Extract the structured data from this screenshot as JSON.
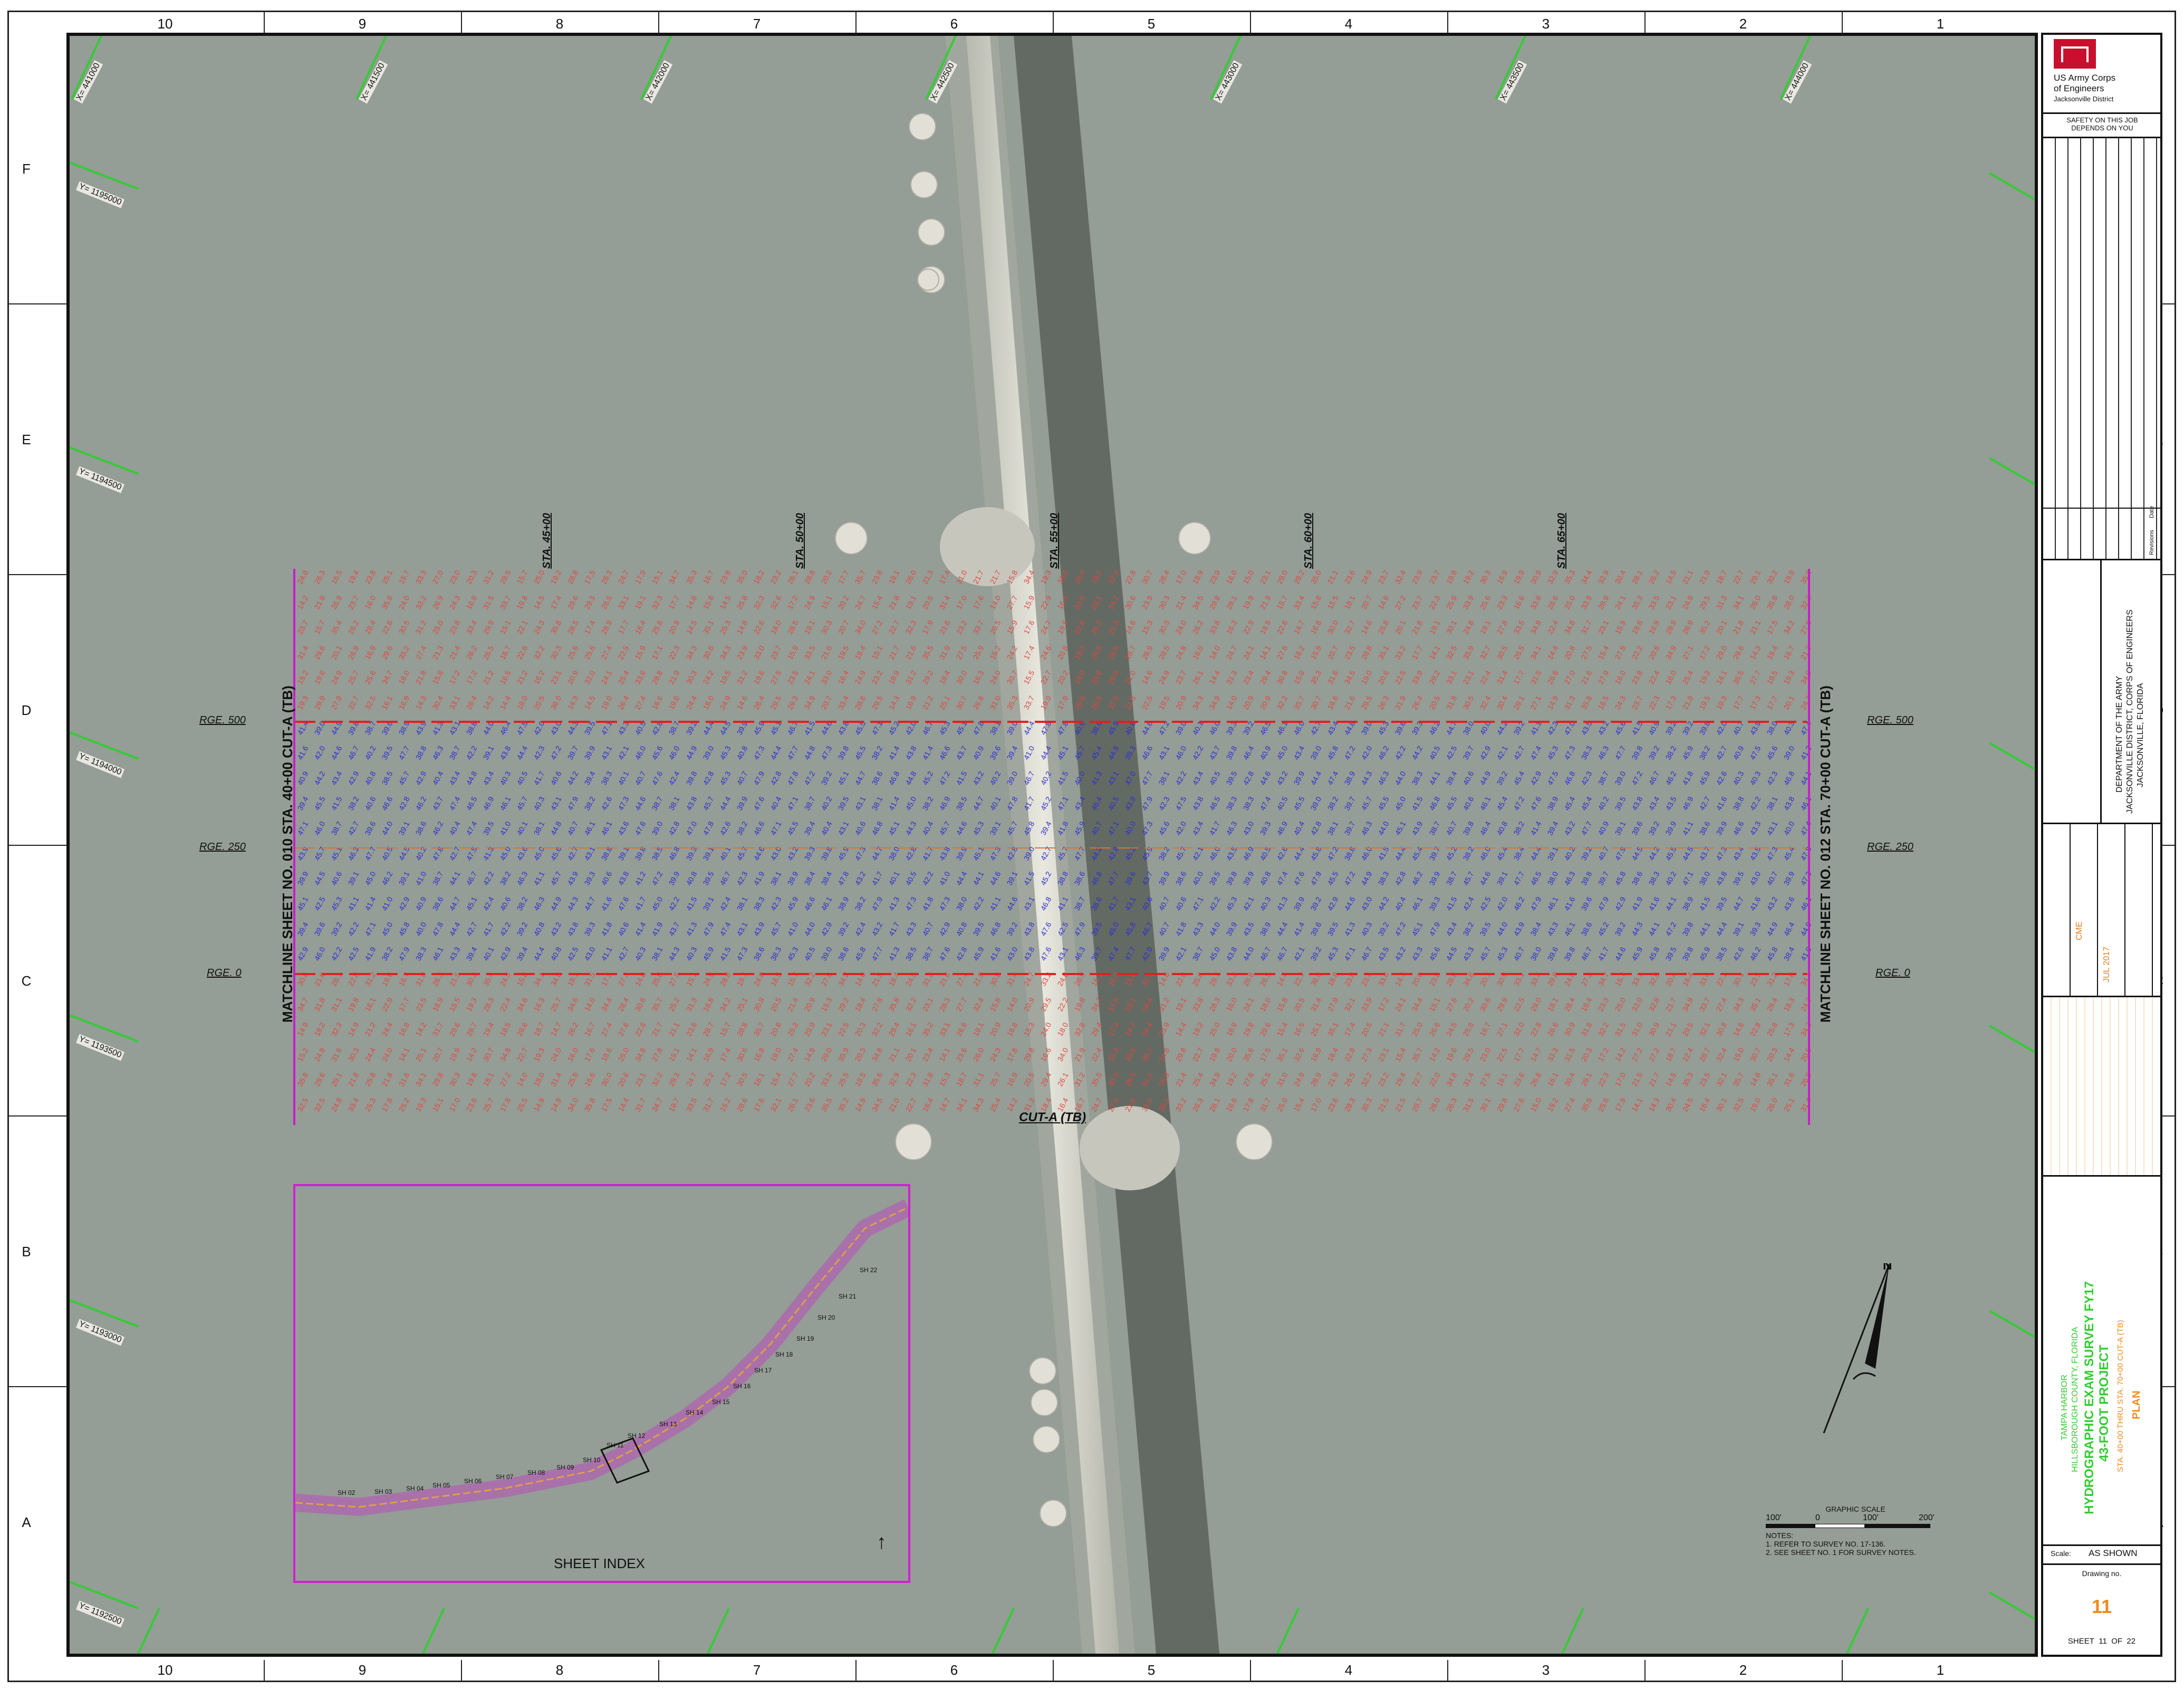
{
  "sheet": {
    "columns": [
      "10",
      "9",
      "8",
      "7",
      "6",
      "5",
      "4",
      "3",
      "2",
      "1"
    ],
    "rows": [
      "F",
      "E",
      "D",
      "C",
      "B",
      "A"
    ]
  },
  "map": {
    "northing_labels": [
      "Y= 1195000",
      "Y= 1194500",
      "Y= 1194000",
      "Y= 1193500",
      "Y= 1193000",
      "Y= 1192500"
    ],
    "easting_labels": [
      "X= 441000",
      "X= 441500",
      "X= 442000",
      "X= 442500",
      "X= 443000",
      "X= 443500",
      "X= 444000"
    ],
    "stations": [
      "STA. 45+00",
      "STA. 50+00",
      "STA. 55+00",
      "STA. 60+00",
      "STA. 65+00"
    ],
    "ranges": [
      "RGE. 500",
      "RGE. 250",
      "RGE. 0"
    ],
    "matchline_left": "MATCHLINE SHEET NO. 010 STA. 40+00 CUT-A (TB)",
    "matchline_right": "MATCHLINE SHEET NO. 012 STA. 70+00 CUT-A (TB)",
    "channel_label": "CUT-A (TB)",
    "colors": {
      "water": "#949d96",
      "deep_soundings": "#2b2bd6",
      "shallow_soundings": "#e0473e",
      "matchline": "#c81ec8",
      "range_line": "#e02020",
      "grid_tick": "#33cc33",
      "inset_border": "#d020d0"
    }
  },
  "inset": {
    "title": "SHEET INDEX",
    "sheet_labels": [
      "SH 02",
      "SH 03",
      "SH 04",
      "SH 05",
      "SH 06",
      "SH 07",
      "SH 08",
      "SH 09",
      "SH 10",
      "SH 11",
      "SH 12",
      "SH 13",
      "SH 14",
      "SH 15",
      "SH 16",
      "SH 17",
      "SH 18",
      "SH 19",
      "SH 20",
      "SH 21",
      "SH 22"
    ]
  },
  "scale_bar": {
    "title": "GRAPHIC SCALE",
    "ticks": [
      "100'",
      "0",
      "100'",
      "200'"
    ]
  },
  "notes": {
    "title": "NOTES:",
    "items": [
      "1. REFER TO SURVEY NO. 17-136.",
      "2. SEE SHEET NO. 1 FOR SURVEY NOTES."
    ]
  },
  "title_block": {
    "agency_line1": "US Army Corps",
    "agency_line2": "of Engineers",
    "agency_line3": "Jacksonville District",
    "safety": "SAFETY ON THIS JOB DEPENDS ON YOU",
    "dept_line1": "DEPARTMENT OF THE ARMY",
    "dept_line2": "JACKSONVILLE DISTRICT, CORPS OF ENGINEERS",
    "dept_line3": "JACKSONVILLE, FLORIDA",
    "project_line1": "TAMPA HARBOR",
    "project_line2": "HILLSBOROUGH COUNTY, FLORIDA",
    "project_line3": "HYDROGRAPHIC EXAM SURVEY FY17",
    "project_line4": "43-FOOT PROJECT",
    "project_line5": "STA. 40+00 THRU STA. 70+00 CUT-A (TB)",
    "project_line6": "PLAN",
    "scale_label": "Scale:",
    "scale_value": "AS SHOWN",
    "drawing_label": "Drawing no.",
    "drawing_no": "11",
    "sheet_word": "SHEET",
    "sheet_no": "11",
    "of_word": "OF",
    "sheet_total": "22",
    "date": "JUL 2017",
    "designed_by": "CME",
    "revision_header_1": "Revisions",
    "revision_header_2": "Date"
  }
}
